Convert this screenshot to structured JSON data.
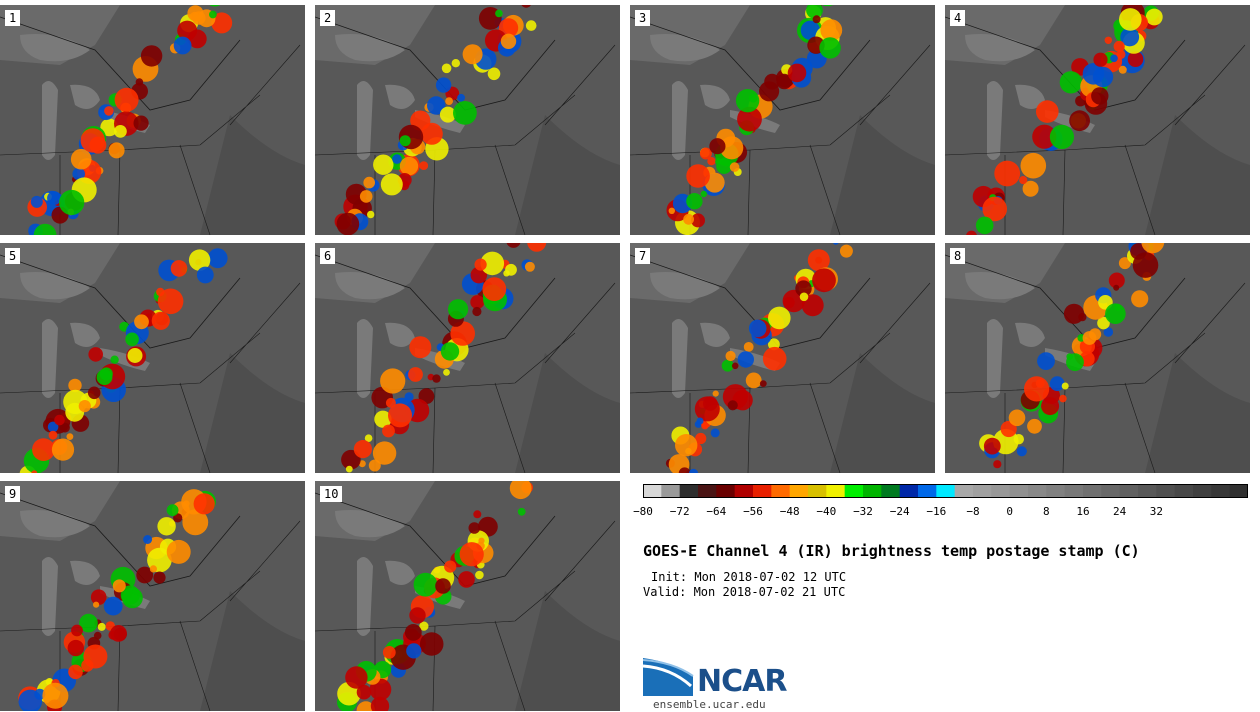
{
  "title": "GOES-E Channel 4 (IR) brightness temp postage stamp (C)",
  "init": "Init: Mon 2018-07-02 12 UTC",
  "valid": "Valid: Mon 2018-07-02 21 UTC",
  "panels": [
    "1",
    "2",
    "3",
    "4",
    "5",
    "6",
    "7",
    "8",
    "9",
    "10"
  ],
  "colorbar": {
    "tick_labels": [
      "−80",
      "−72",
      "−64",
      "−56",
      "−48",
      "−40",
      "−32",
      "−24",
      "−16",
      "−8",
      "0",
      "8",
      "16",
      "24",
      "32"
    ],
    "colors": [
      "#d8d8d8",
      "#9a9a9a",
      "#2e2e2e",
      "#4a1414",
      "#6a0000",
      "#b00000",
      "#e82000",
      "#ff6a00",
      "#ffa600",
      "#d8c000",
      "#f0f000",
      "#00ee00",
      "#00b400",
      "#007a20",
      "#0028a8",
      "#0068e8",
      "#00e8ff",
      "#a8a8a8",
      "#a0a0a0",
      "#989898",
      "#909090",
      "#888888",
      "#808080",
      "#787878",
      "#707070",
      "#686868",
      "#606060",
      "#585858",
      "#505050",
      "#484848",
      "#404040",
      "#383838",
      "#303030"
    ]
  },
  "logo": {
    "text": "NCAR",
    "url": "ensemble.ucar.edu"
  }
}
